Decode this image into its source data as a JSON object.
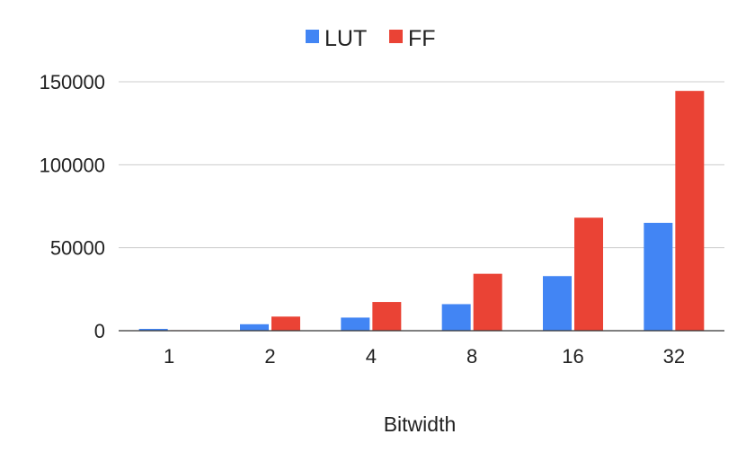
{
  "chart_data": {
    "type": "bar",
    "title": "",
    "xlabel": "Bitwidth",
    "ylabel": "",
    "categories": [
      "1",
      "2",
      "4",
      "8",
      "16",
      "32"
    ],
    "series": [
      {
        "name": "LUT",
        "color": "#4285f4",
        "values": [
          1100,
          3900,
          7900,
          16000,
          32900,
          65000
        ]
      },
      {
        "name": "FF",
        "color": "#ea4335",
        "values": [
          300,
          8500,
          17300,
          34300,
          68100,
          144500
        ]
      }
    ],
    "ylim": [
      0,
      150000
    ],
    "yticks": [
      "0",
      "50000",
      "100000",
      "150000"
    ],
    "grid": true,
    "legend_position": "top"
  }
}
